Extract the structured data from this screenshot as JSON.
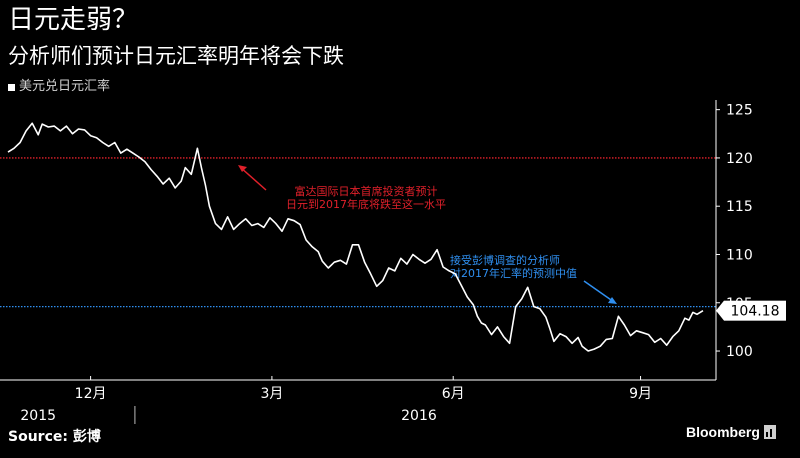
{
  "header": {
    "title": "日元走弱？",
    "subtitle": "分析师们预计日元汇率明年将会下跌"
  },
  "legend": {
    "label": "美元兑日元汇率"
  },
  "footer": {
    "source": "Source: 彭博",
    "brand": "Bloomberg"
  },
  "colors": {
    "background": "#000000",
    "series": "#ffffff",
    "ref_red": "#e0202a",
    "ref_blue": "#2f8ff0"
  },
  "chart_data": {
    "type": "line",
    "title": "日元走弱？",
    "subtitle": "分析师们预计日元汇率明年将会下跌",
    "ylim": [
      97,
      126
    ],
    "yticks": [
      100,
      105,
      110,
      115,
      120,
      125
    ],
    "x_index_range": [
      0,
      345
    ],
    "x_ticks": [
      {
        "i": 41,
        "label": "12月"
      },
      {
        "i": 131,
        "label": "3月"
      },
      {
        "i": 221,
        "label": "6月"
      },
      {
        "i": 314,
        "label": "9月"
      }
    ],
    "year_labels": [
      {
        "i": 15,
        "label": "2015"
      },
      {
        "i": 204,
        "label": "2016"
      }
    ],
    "year_divider_i": 63,
    "grid": false,
    "last_value_label": "104.18",
    "series": [
      {
        "name": "美元兑日元汇率",
        "points": [
          [
            0,
            120.6
          ],
          [
            3,
            121.0
          ],
          [
            6,
            121.6
          ],
          [
            9,
            122.8
          ],
          [
            12,
            123.6
          ],
          [
            15,
            122.4
          ],
          [
            17,
            123.5
          ],
          [
            20,
            123.2
          ],
          [
            23,
            123.3
          ],
          [
            26,
            122.8
          ],
          [
            29,
            123.3
          ],
          [
            32,
            122.5
          ],
          [
            35,
            123.0
          ],
          [
            38,
            122.9
          ],
          [
            41,
            122.3
          ],
          [
            44,
            122.1
          ],
          [
            47,
            121.6
          ],
          [
            50,
            121.2
          ],
          [
            53,
            121.6
          ],
          [
            56,
            120.5
          ],
          [
            59,
            120.9
          ],
          [
            62,
            120.5
          ],
          [
            65,
            120.1
          ],
          [
            68,
            119.6
          ],
          [
            71,
            118.8
          ],
          [
            74,
            118.1
          ],
          [
            77,
            117.3
          ],
          [
            80,
            117.9
          ],
          [
            83,
            116.9
          ],
          [
            86,
            117.6
          ],
          [
            88,
            119.0
          ],
          [
            91,
            118.3
          ],
          [
            94,
            121.0
          ],
          [
            96,
            119.0
          ],
          [
            98,
            117.2
          ],
          [
            100,
            115.0
          ],
          [
            103,
            113.2
          ],
          [
            106,
            112.6
          ],
          [
            109,
            113.9
          ],
          [
            112,
            112.6
          ],
          [
            115,
            113.2
          ],
          [
            118,
            113.7
          ],
          [
            121,
            113.0
          ],
          [
            124,
            113.2
          ],
          [
            127,
            112.8
          ],
          [
            130,
            113.8
          ],
          [
            133,
            113.2
          ],
          [
            136,
            112.4
          ],
          [
            139,
            113.7
          ],
          [
            142,
            113.5
          ],
          [
            145,
            113.1
          ],
          [
            148,
            111.5
          ],
          [
            151,
            110.8
          ],
          [
            154,
            110.3
          ],
          [
            156,
            109.3
          ],
          [
            159,
            108.6
          ],
          [
            162,
            109.2
          ],
          [
            165,
            109.4
          ],
          [
            168,
            109.0
          ],
          [
            171,
            111.0
          ],
          [
            174,
            111.0
          ],
          [
            177,
            109.2
          ],
          [
            180,
            108.0
          ],
          [
            183,
            106.7
          ],
          [
            186,
            107.3
          ],
          [
            189,
            108.6
          ],
          [
            192,
            108.3
          ],
          [
            195,
            109.6
          ],
          [
            198,
            109.0
          ],
          [
            201,
            110.0
          ],
          [
            204,
            109.5
          ],
          [
            207,
            109.1
          ],
          [
            210,
            109.5
          ],
          [
            213,
            110.5
          ],
          [
            216,
            108.7
          ],
          [
            219,
            108.3
          ],
          [
            222,
            108.0
          ],
          [
            225,
            106.8
          ],
          [
            228,
            105.6
          ],
          [
            231,
            104.8
          ],
          [
            233,
            103.6
          ],
          [
            235,
            102.9
          ],
          [
            237,
            102.7
          ],
          [
            240,
            101.7
          ],
          [
            243,
            102.5
          ],
          [
            246,
            101.5
          ],
          [
            249,
            100.8
          ],
          [
            252,
            104.6
          ],
          [
            255,
            105.4
          ],
          [
            258,
            106.6
          ],
          [
            261,
            104.6
          ],
          [
            264,
            104.4
          ],
          [
            267,
            103.5
          ],
          [
            269,
            102.3
          ],
          [
            271,
            101.0
          ],
          [
            274,
            101.8
          ],
          [
            277,
            101.5
          ],
          [
            280,
            100.8
          ],
          [
            283,
            101.4
          ],
          [
            285,
            100.5
          ],
          [
            288,
            100.0
          ],
          [
            291,
            100.2
          ],
          [
            294,
            100.5
          ],
          [
            297,
            101.2
          ],
          [
            300,
            101.3
          ],
          [
            303,
            103.6
          ],
          [
            306,
            102.7
          ],
          [
            309,
            101.6
          ],
          [
            312,
            102.1
          ],
          [
            315,
            101.9
          ],
          [
            318,
            101.7
          ],
          [
            321,
            100.9
          ],
          [
            324,
            101.3
          ],
          [
            327,
            100.6
          ],
          [
            330,
            101.5
          ],
          [
            333,
            102.1
          ],
          [
            336,
            103.4
          ],
          [
            338,
            103.2
          ],
          [
            340,
            104.0
          ],
          [
            342,
            103.8
          ],
          [
            345,
            104.18
          ]
        ]
      }
    ],
    "reference_lines": [
      {
        "value": 120,
        "color": "#e0202a",
        "style": "dotted",
        "annotation": [
          "富达国际日本首席投资者预计",
          "日元到2017年底将跌至这一水平"
        ]
      },
      {
        "value": 104.6,
        "color": "#2f8ff0",
        "style": "dotted",
        "annotation": [
          "接受彭博调查的分析师",
          "对2017年汇率的预测中值"
        ]
      }
    ]
  }
}
